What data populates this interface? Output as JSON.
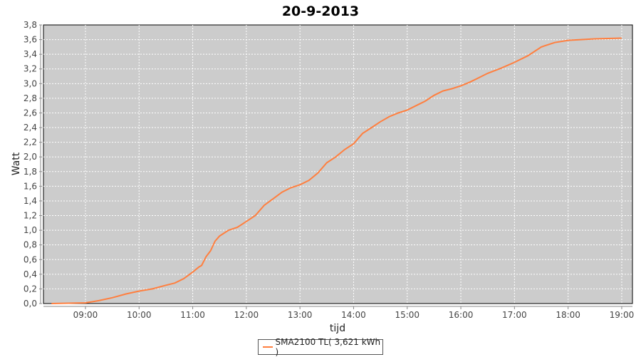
{
  "chart_data": {
    "type": "line",
    "title": "20-9-2013",
    "xlabel": "tijd",
    "ylabel": "Watt",
    "xlim": [
      "08:13",
      "19:12"
    ],
    "ylim": [
      0,
      3.8
    ],
    "x_ticks": [
      "09:00",
      "10:00",
      "11:00",
      "12:00",
      "13:00",
      "14:00",
      "15:00",
      "16:00",
      "17:00",
      "18:00",
      "19:00"
    ],
    "y_ticks": [
      "0,0",
      "0,2",
      "0,4",
      "0,6",
      "0,8",
      "1,0",
      "1,2",
      "1,4",
      "1,6",
      "1,8",
      "2,0",
      "2,2",
      "2,4",
      "2,6",
      "2,8",
      "3,0",
      "3,2",
      "3,4",
      "3,6",
      "3,8"
    ],
    "grid": true,
    "legend_position": "bottom",
    "background": "#cccccc",
    "series": [
      {
        "name": "SMA2100 TL( 3,621 kWh )",
        "color": "#ff7f3f",
        "x": [
          "08:22",
          "09:00",
          "09:15",
          "09:30",
          "09:45",
          "10:00",
          "10:15",
          "10:30",
          "10:40",
          "10:50",
          "11:00",
          "11:07",
          "11:10",
          "11:15",
          "11:20",
          "11:25",
          "11:30",
          "11:40",
          "11:50",
          "12:00",
          "12:10",
          "12:20",
          "12:30",
          "12:40",
          "12:50",
          "13:00",
          "13:10",
          "13:20",
          "13:30",
          "13:40",
          "13:50",
          "14:00",
          "14:10",
          "14:20",
          "14:30",
          "14:40",
          "14:50",
          "15:00",
          "15:10",
          "15:20",
          "15:30",
          "15:40",
          "15:50",
          "16:00",
          "16:10",
          "16:20",
          "16:30",
          "16:45",
          "17:00",
          "17:15",
          "17:30",
          "17:45",
          "18:00",
          "18:30",
          "19:00"
        ],
        "y": [
          0.0,
          0.01,
          0.04,
          0.08,
          0.13,
          0.17,
          0.2,
          0.25,
          0.28,
          0.34,
          0.43,
          0.5,
          0.52,
          0.64,
          0.72,
          0.85,
          0.92,
          1.0,
          1.04,
          1.12,
          1.2,
          1.34,
          1.43,
          1.52,
          1.58,
          1.62,
          1.68,
          1.78,
          1.92,
          2.0,
          2.1,
          2.18,
          2.32,
          2.4,
          2.48,
          2.55,
          2.6,
          2.64,
          2.7,
          2.76,
          2.84,
          2.9,
          2.93,
          2.97,
          3.02,
          3.08,
          3.14,
          3.21,
          3.29,
          3.38,
          3.5,
          3.56,
          3.59,
          3.61,
          3.62
        ]
      }
    ]
  }
}
